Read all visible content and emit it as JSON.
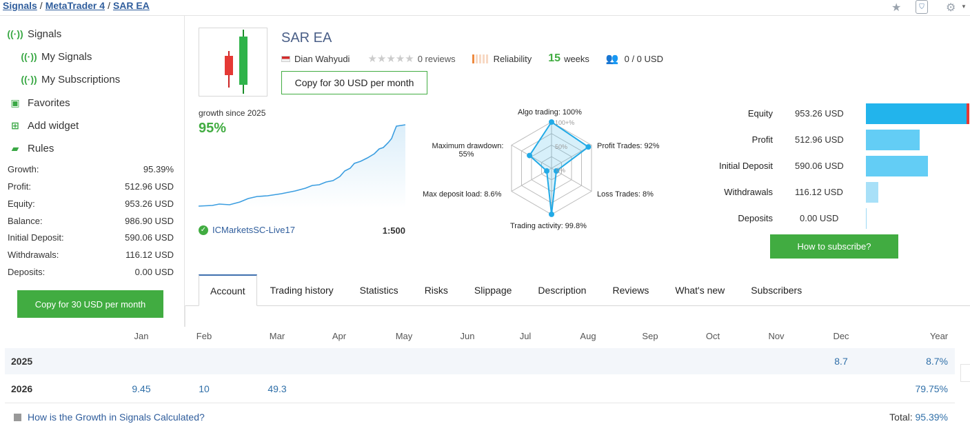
{
  "breadcrumb": [
    {
      "label": "Signals"
    },
    {
      "label": "MetaTrader 4"
    },
    {
      "label": "SAR EA"
    }
  ],
  "breadcrumb_sep": "/",
  "sidebar": {
    "nav": [
      {
        "label": "Signals",
        "icon": "signal-icon"
      },
      {
        "label": "My Signals",
        "icon": "my-signals-icon"
      },
      {
        "label": "My Subscriptions",
        "icon": "subscriptions-icon"
      },
      {
        "label": "Favorites",
        "icon": "favorites-icon"
      },
      {
        "label": "Add widget",
        "icon": "widget-icon"
      },
      {
        "label": "Rules",
        "icon": "rules-icon"
      }
    ],
    "stats": [
      {
        "label": "Growth:",
        "value": "95.39%"
      },
      {
        "label": "Profit:",
        "value": "512.96 USD"
      },
      {
        "label": "Equity:",
        "value": "953.26 USD"
      },
      {
        "label": "Balance:",
        "value": "986.90 USD"
      },
      {
        "label": "Initial Deposit:",
        "value": "590.06 USD"
      },
      {
        "label": "Withdrawals:",
        "value": "116.12 USD"
      },
      {
        "label": "Deposits:",
        "value": "0.00 USD"
      }
    ],
    "copy_button": "Copy for 30 USD per month"
  },
  "signal": {
    "title": "SAR EA",
    "author": "Dian Wahyudi",
    "reviews": "0 reviews",
    "stars_filled": 0,
    "reliability_label": "Reliability",
    "weeks_num": "15",
    "weeks_label": "weeks",
    "subscribers": "0 / 0 USD",
    "copy_button": "Copy for 30 USD per month"
  },
  "growth": {
    "label": "growth since 2025",
    "value": "95%",
    "broker": "ICMarketsSC-Live17",
    "leverage": "1:500"
  },
  "radar": {
    "labels": {
      "algo": "Algo trading: 100%",
      "profit_trades": "Profit Trades: 92%",
      "loss_trades": "Loss Trades: 8%",
      "activity": "Trading activity: 99.8%",
      "deposit_load": "Max deposit load: 8.6%",
      "drawdown_line1": "Maximum drawdown:",
      "drawdown_line2": "55%"
    },
    "scale": {
      "s100": "100+%",
      "s50": "50%",
      "s0": "0%"
    },
    "values": [
      100,
      92,
      8,
      99.8,
      8.6,
      55
    ]
  },
  "equity_panel": [
    {
      "label": "Equity",
      "value": "953.26 USD",
      "fraction": 1.0
    },
    {
      "label": "Profit",
      "value": "512.96 USD",
      "fraction": 0.52
    },
    {
      "label": "Initial Deposit",
      "value": "590.06 USD",
      "fraction": 0.6
    },
    {
      "label": "Withdrawals",
      "value": "116.12 USD",
      "fraction": 0.12
    },
    {
      "label": "Deposits",
      "value": "0.00 USD",
      "fraction": 0.0
    }
  ],
  "subscribe_button": "How to subscribe?",
  "tabs": [
    "Account",
    "Trading history",
    "Statistics",
    "Risks",
    "Slippage",
    "Description",
    "Reviews",
    "What's new",
    "Subscribers"
  ],
  "monthly": {
    "months": [
      "Jan",
      "Feb",
      "Mar",
      "Apr",
      "May",
      "Jun",
      "Jul",
      "Aug",
      "Sep",
      "Oct",
      "Nov",
      "Dec"
    ],
    "year_header": "Year",
    "rows": [
      {
        "year": "2025",
        "cells": [
          "",
          "",
          "",
          "",
          "",
          "",
          "",
          "",
          "",
          "",
          "",
          "8.7"
        ],
        "total": "8.7%"
      },
      {
        "year": "2026",
        "cells": [
          "9.45",
          "10",
          "49.3",
          "",
          "",
          "",
          "",
          "",
          "",
          "",
          "",
          ""
        ],
        "total": "79.75%"
      }
    ],
    "faq": "How is the Growth in Signals Calculated?",
    "total_label": "Total:",
    "total_value": "95.39%"
  },
  "colors": {
    "accent_green": "#41ac41",
    "link_blue": "#2f5d9c",
    "bar_blue": "#22b4ec",
    "bar_light": "#63cdf5",
    "cell_blue": "#2f6fa8"
  }
}
